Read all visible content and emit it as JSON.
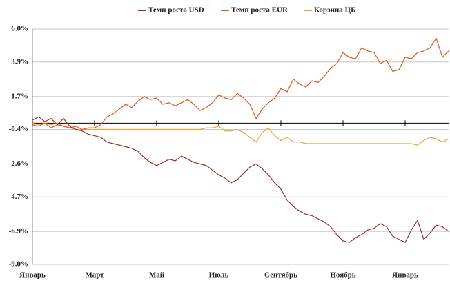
{
  "chart_data": {
    "type": "line",
    "categories": [
      "Январь",
      null,
      null,
      null,
      null,
      null,
      null,
      null,
      null,
      null,
      "Март",
      null,
      null,
      null,
      null,
      null,
      null,
      null,
      null,
      null,
      "Май",
      null,
      null,
      null,
      null,
      null,
      null,
      null,
      null,
      null,
      "Июль",
      null,
      null,
      null,
      null,
      null,
      null,
      null,
      null,
      null,
      "Сентябрь",
      null,
      null,
      null,
      null,
      null,
      null,
      null,
      null,
      null,
      "Ноябрь",
      null,
      null,
      null,
      null,
      null,
      null,
      null,
      null,
      null,
      "Январь",
      null,
      null,
      null,
      null,
      null,
      null,
      null
    ],
    "series": [
      {
        "name": "Темп роста USD",
        "color": "#a3282a",
        "values": [
          0.2,
          0.4,
          0.1,
          0.3,
          -0.1,
          0.3,
          -0.2,
          -0.4,
          -0.5,
          -0.7,
          -0.8,
          -0.9,
          -1.2,
          -1.3,
          -1.4,
          -1.5,
          -1.6,
          -1.8,
          -2.2,
          -2.5,
          -2.7,
          -2.5,
          -2.3,
          -2.4,
          -2.1,
          -2.3,
          -2.5,
          -2.6,
          -2.7,
          -3.0,
          -3.3,
          -3.5,
          -3.8,
          -3.6,
          -3.2,
          -2.8,
          -2.6,
          -2.9,
          -3.3,
          -3.8,
          -4.2,
          -4.9,
          -5.3,
          -5.6,
          -5.8,
          -5.9,
          -6.1,
          -6.3,
          -6.6,
          -7.1,
          -7.5,
          -7.6,
          -7.3,
          -7.1,
          -6.8,
          -6.7,
          -6.4,
          -6.6,
          -7.2,
          -7.4,
          -7.6,
          -6.8,
          -6.2,
          -7.4,
          -7.0,
          -6.5,
          -6.6,
          -6.9
        ]
      },
      {
        "name": "Темп роста EUR",
        "color": "#e8501e",
        "values": [
          -0.1,
          -0.2,
          0.0,
          -0.3,
          -0.1,
          -0.2,
          -0.3,
          -0.2,
          -0.4,
          -0.3,
          -0.3,
          -0.1,
          0.4,
          0.6,
          0.9,
          1.2,
          1.0,
          1.4,
          1.7,
          1.5,
          1.6,
          1.2,
          1.3,
          1.1,
          1.3,
          1.5,
          1.2,
          0.8,
          1.0,
          1.3,
          1.8,
          1.6,
          1.5,
          1.9,
          1.6,
          1.2,
          0.3,
          0.9,
          1.3,
          1.6,
          2.2,
          2.0,
          2.8,
          2.5,
          2.3,
          2.7,
          2.6,
          3.0,
          3.5,
          3.8,
          4.5,
          4.2,
          4.1,
          4.8,
          4.6,
          4.5,
          3.8,
          4.0,
          3.3,
          3.4,
          4.2,
          4.1,
          4.5,
          4.6,
          4.8,
          5.4,
          4.2,
          4.6
        ]
      },
      {
        "name": "Корзина ЦБ",
        "color": "#f0a030",
        "values": [
          0.0,
          -0.1,
          0.0,
          -0.1,
          0.0,
          -0.2,
          -0.3,
          -0.4,
          -0.4,
          -0.4,
          -0.4,
          -0.4,
          -0.4,
          -0.4,
          -0.4,
          -0.4,
          -0.4,
          -0.4,
          -0.4,
          -0.4,
          -0.4,
          -0.4,
          -0.4,
          -0.4,
          -0.4,
          -0.4,
          -0.4,
          -0.4,
          -0.3,
          -0.3,
          -0.2,
          -0.5,
          -0.5,
          -0.4,
          -0.6,
          -0.9,
          -1.2,
          -0.6,
          -0.3,
          -0.8,
          -1.1,
          -0.9,
          -1.2,
          -1.2,
          -1.3,
          -1.3,
          -1.3,
          -1.3,
          -1.3,
          -1.3,
          -1.3,
          -1.3,
          -1.3,
          -1.3,
          -1.3,
          -1.3,
          -1.3,
          -1.3,
          -1.3,
          -1.3,
          -1.3,
          -1.3,
          -1.4,
          -1.1,
          -0.9,
          -1.0,
          -1.2,
          -1.0
        ]
      }
    ],
    "ylim": [
      -9.0,
      6.0
    ],
    "yticks": [
      {
        "value": 6.0,
        "label": "6.0%"
      },
      {
        "value": 3.9,
        "label": "3.9%"
      },
      {
        "value": 1.7,
        "label": "1.7%"
      },
      {
        "value": -0.4,
        "label": "-0.4%"
      },
      {
        "value": -2.6,
        "label": "-2.6%"
      },
      {
        "value": -4.7,
        "label": "-4.7%"
      },
      {
        "value": -6.9,
        "label": "-6.9%"
      },
      {
        "value": -9.0,
        "label": "-9.0%"
      }
    ],
    "grid": true,
    "legend": "top"
  }
}
